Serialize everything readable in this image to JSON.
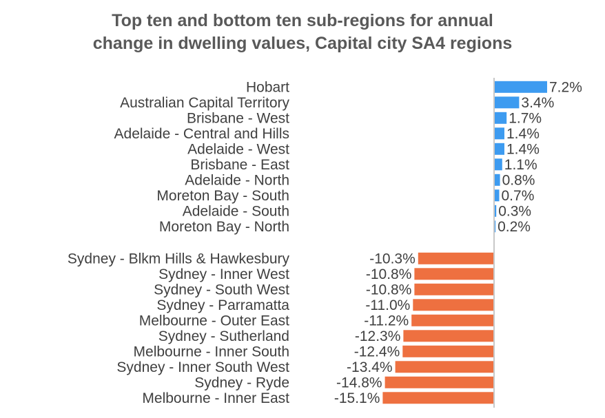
{
  "chart_data": {
    "type": "bar",
    "orientation": "horizontal",
    "title": "Top ten and bottom ten sub-regions for annual change in dwelling values, Capital city SA4 regions",
    "title_lines": [
      "Top ten and bottom ten sub-regions for annual",
      "change in dwelling values, Capital city SA4 regions"
    ],
    "xlim": [
      -16,
      8
    ],
    "value_suffix": "%",
    "series": [
      {
        "name": "Top ten",
        "color": "#3d9bf0",
        "categories": [
          "Hobart",
          "Australian Capital Territory",
          "Brisbane - West",
          "Adelaide - Central and Hills",
          "Adelaide - West",
          "Brisbane - East",
          "Adelaide - North",
          "Moreton Bay - South",
          "Adelaide - South",
          "Moreton Bay - North"
        ],
        "values": [
          7.2,
          3.4,
          1.7,
          1.4,
          1.4,
          1.1,
          0.8,
          0.7,
          0.3,
          0.2
        ],
        "labels": [
          "7.2%",
          "3.4%",
          "1.7%",
          "1.4%",
          "1.4%",
          "1.1%",
          "0.8%",
          "0.7%",
          "0.3%",
          "0.2%"
        ]
      },
      {
        "name": "Bottom ten",
        "color": "#ee7040",
        "categories": [
          "Sydney - Blkm Hills & Hawkesbury",
          "Sydney - Inner West",
          "Sydney - South West",
          "Sydney - Parramatta",
          "Melbourne - Outer East",
          "Sydney - Sutherland",
          "Melbourne - Inner South",
          "Sydney - Inner South West",
          "Sydney - Ryde",
          "Melbourne - Inner East"
        ],
        "values": [
          -10.3,
          -10.8,
          -10.8,
          -11.0,
          -11.2,
          -12.3,
          -12.4,
          -13.4,
          -14.8,
          -15.1
        ],
        "labels": [
          "-10.3%",
          "-10.8%",
          "-10.8%",
          "-11.0%",
          "-11.2%",
          "-12.3%",
          "-12.4%",
          "-13.4%",
          "-14.8%",
          "-15.1%"
        ]
      }
    ],
    "axis_color": "#c8c8c8"
  }
}
